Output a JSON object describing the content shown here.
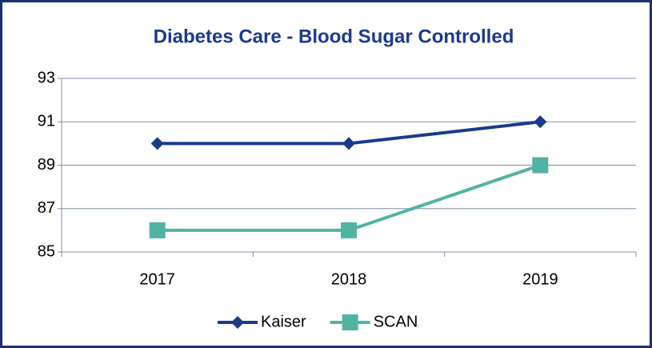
{
  "chart_data": {
    "type": "line",
    "title": "Diabetes Care - Blood Sugar Controlled",
    "categories": [
      "2017",
      "2018",
      "2019"
    ],
    "series": [
      {
        "name": "Kaiser",
        "color": "#1b3a8c",
        "marker": "diamond",
        "values": [
          90,
          90,
          91
        ]
      },
      {
        "name": "SCAN",
        "color": "#52b3a5",
        "marker": "square",
        "values": [
          86,
          86,
          89
        ]
      }
    ],
    "ylim": [
      85,
      93
    ],
    "yticks": [
      85,
      87,
      89,
      91,
      93
    ],
    "grid": true,
    "legend": "bottom"
  }
}
